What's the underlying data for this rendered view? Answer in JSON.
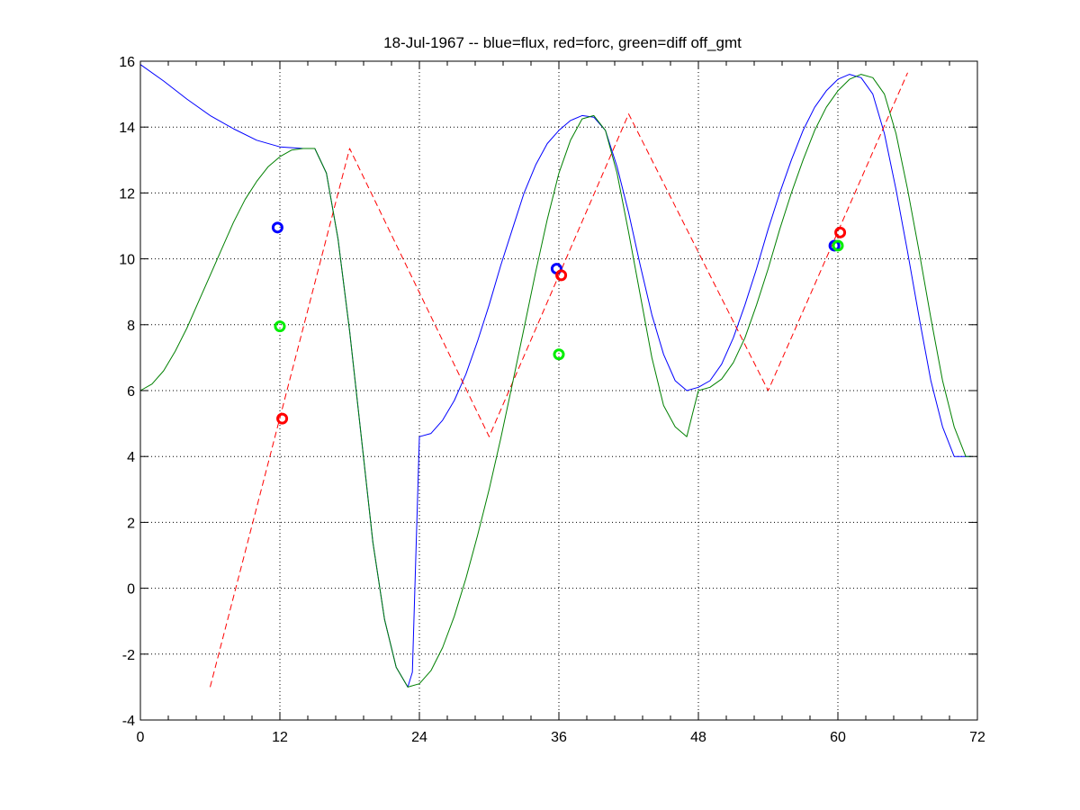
{
  "chart_data": {
    "type": "line",
    "title": "18-Jul-1967 -- blue=flux, red=forc, green=diff off_gmt",
    "xlabel": "",
    "ylabel": "",
    "xlim": [
      0,
      72
    ],
    "ylim": [
      -4,
      16
    ],
    "xticks": [
      0,
      12,
      24,
      36,
      48,
      60,
      72
    ],
    "yticks": [
      -4,
      -2,
      0,
      2,
      4,
      6,
      8,
      10,
      12,
      14,
      16
    ],
    "x_minor_ticks": [
      2.4,
      4.8,
      7.2,
      9.6,
      14.4,
      16.8,
      19.2,
      21.6,
      26.4,
      28.8,
      31.2,
      33.6,
      38.4,
      40.8,
      43.2,
      45.6,
      50.4,
      52.8,
      55.2,
      57.6,
      62.4,
      64.8,
      67.2,
      69.6
    ],
    "grid": true,
    "legend": "none",
    "series": [
      {
        "color": "#0000ff",
        "style": "solid",
        "x": [
          0,
          2,
          4,
          6,
          8,
          10,
          12,
          14,
          15,
          16,
          17,
          18,
          19,
          20,
          21,
          22,
          23,
          23.4,
          24,
          25,
          26,
          27,
          28,
          29,
          30,
          31,
          32,
          33,
          34,
          35,
          36,
          37,
          38,
          39,
          40,
          41,
          42,
          43,
          44,
          45,
          46,
          47,
          48,
          49,
          50,
          51,
          52,
          53,
          54,
          55,
          56,
          57,
          58,
          59,
          60,
          61,
          62,
          63,
          64,
          65,
          66,
          67,
          68,
          69,
          70,
          71,
          71.5
        ],
        "y": [
          15.9,
          15.4,
          14.85,
          14.35,
          13.95,
          13.6,
          13.4,
          13.35,
          13.35,
          12.6,
          10.6,
          7.8,
          4.6,
          1.4,
          -0.95,
          -2.4,
          -3.0,
          -2.55,
          4.6,
          4.7,
          5.1,
          5.7,
          6.5,
          7.5,
          8.6,
          9.8,
          10.9,
          12.0,
          12.85,
          13.5,
          13.9,
          14.2,
          14.35,
          14.3,
          13.9,
          12.8,
          11.4,
          9.8,
          8.3,
          7.1,
          6.3,
          6.0,
          6.1,
          6.3,
          6.8,
          7.6,
          8.6,
          9.7,
          10.9,
          12.0,
          13.0,
          13.9,
          14.6,
          15.1,
          15.45,
          15.6,
          15.5,
          15.0,
          13.8,
          12.1,
          10.2,
          8.2,
          6.3,
          4.9,
          4.0,
          4.0,
          4.0
        ],
        "markers": [
          {
            "x": 11.8,
            "y": 10.95
          },
          {
            "x": 35.8,
            "y": 9.7
          },
          {
            "x": 59.7,
            "y": 10.4
          }
        ]
      },
      {
        "color": "#ff0000",
        "style": "dashed",
        "x": [
          6,
          18,
          30,
          42,
          54,
          66
        ],
        "y": [
          -3.0,
          13.35,
          4.6,
          14.4,
          6.0,
          15.65
        ],
        "markers": [
          {
            "x": 12.2,
            "y": 5.15
          },
          {
            "x": 36.2,
            "y": 9.5
          },
          {
            "x": 60.2,
            "y": 10.8
          }
        ]
      },
      {
        "color": "#008000",
        "style": "solid",
        "x": [
          0,
          1,
          2,
          3,
          4,
          5,
          6,
          7,
          8,
          9,
          10,
          11,
          12,
          13,
          14,
          15,
          16,
          17,
          18,
          19,
          20,
          21,
          22,
          23,
          24,
          25,
          26,
          27,
          28,
          29,
          30,
          31,
          32,
          33,
          34,
          35,
          36,
          37,
          38,
          39,
          40,
          41,
          42,
          43,
          44,
          45,
          46,
          47,
          47.5,
          48,
          49,
          50,
          51,
          52,
          53,
          54,
          55,
          56,
          57,
          58,
          59,
          60,
          61,
          62,
          63,
          64,
          65,
          66,
          67,
          68,
          69,
          70,
          71,
          71.5
        ],
        "y": [
          6.0,
          6.2,
          6.6,
          7.2,
          7.9,
          8.7,
          9.5,
          10.3,
          11.1,
          11.8,
          12.35,
          12.8,
          13.1,
          13.3,
          13.35,
          13.35,
          12.6,
          10.6,
          7.8,
          4.6,
          1.4,
          -0.95,
          -2.4,
          -3.0,
          -2.9,
          -2.5,
          -1.8,
          -0.85,
          0.3,
          1.6,
          3.0,
          4.55,
          6.2,
          7.9,
          9.6,
          11.2,
          12.6,
          13.6,
          14.25,
          14.35,
          13.9,
          12.6,
          10.8,
          8.9,
          7.0,
          5.55,
          4.9,
          4.6,
          5.3,
          6.0,
          6.1,
          6.35,
          6.85,
          7.6,
          8.6,
          9.7,
          10.9,
          12.0,
          13.0,
          13.9,
          14.6,
          15.1,
          15.45,
          15.6,
          15.5,
          15.0,
          13.8,
          12.1,
          10.2,
          8.2,
          6.3,
          4.9,
          4.0,
          4.0
        ],
        "markers": [
          {
            "x": 12.0,
            "y": 7.95
          },
          {
            "x": 36.0,
            "y": 7.1
          },
          {
            "x": 60.0,
            "y": 10.4
          }
        ]
      }
    ],
    "marker_colors": [
      "#0000ff",
      "#ff0000",
      "#00ee00"
    ]
  }
}
